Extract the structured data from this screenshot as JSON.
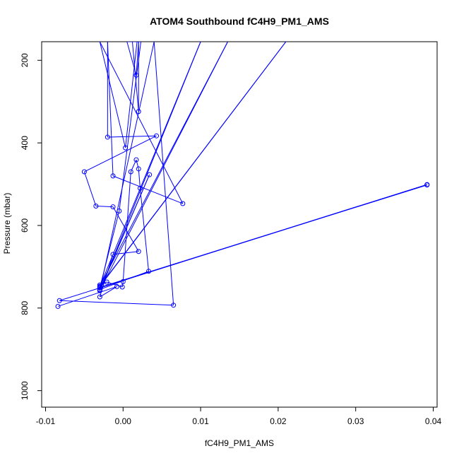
{
  "chart_data": {
    "type": "line",
    "title": "ATOM4 Southbound fC4H9_PM1_AMS",
    "xlabel": "fC4H9_PM1_AMS",
    "ylabel": "Pressure (mbar)",
    "xlim": [
      -0.0105,
      0.0405
    ],
    "ylim": [
      1040,
      155
    ],
    "y_reversed": true,
    "x_ticks": [
      -0.01,
      0.0,
      0.01,
      0.02,
      0.03,
      0.04
    ],
    "x_tick_labels": [
      "-0.01",
      "0.00",
      "0.01",
      "0.02",
      "0.03",
      "0.04"
    ],
    "y_ticks": [
      200,
      400,
      600,
      800,
      1000
    ],
    "y_tick_labels": [
      "200",
      "400",
      "600",
      "800",
      "1000"
    ],
    "grid": false,
    "legend": "none",
    "series_color": "#0000ff",
    "series": [
      {
        "style": "line+points",
        "points": [
          [
            -0.0084,
            796
          ],
          [
            -0.0008,
            748
          ],
          [
            -0.003,
            773
          ],
          [
            -0.0013,
            670
          ],
          [
            0.002,
            663
          ],
          [
            -0.0013,
            555
          ],
          [
            -0.0035,
            553
          ],
          [
            -0.005,
            470
          ],
          [
            0.0043,
            383
          ],
          [
            -0.002,
            386
          ],
          [
            -0.002,
            155
          ],
          [
            -0.0013,
            480
          ],
          [
            0.0077,
            547
          ],
          [
            -0.003,
            155
          ],
          [
            0.0003,
            412
          ],
          [
            0.0018,
            155
          ],
          [
            0.0005,
            155
          ],
          [
            0.0017,
            236
          ],
          [
            0.002,
            155
          ],
          [
            0.002,
            324
          ],
          [
            0.0012,
            155
          ],
          [
            0.001,
            155
          ],
          [
            0.0023,
            155
          ],
          [
            -0.0005,
            565
          ],
          [
            -0.003,
            751
          ],
          [
            -0.003,
            744
          ],
          [
            -0.0021,
            737
          ],
          [
            -0.0001,
            749
          ],
          [
            0.0,
            736
          ],
          [
            0.001,
            470
          ],
          [
            0.0017,
            441
          ],
          [
            0.002,
            463
          ],
          [
            0.0022,
            510
          ],
          [
            0.0033,
            711
          ],
          [
            -0.003,
            755
          ],
          [
            0.0034,
            477
          ],
          [
            -0.003,
            757
          ],
          [
            0.0135,
            155
          ],
          [
            -0.003,
            747
          ],
          [
            0.021,
            155
          ],
          [
            -0.003,
            748
          ],
          [
            0.01,
            155
          ],
          [
            -0.003,
            758
          ],
          [
            0.004,
            155
          ],
          [
            0.0065,
            793
          ],
          [
            -0.0082,
            782
          ],
          [
            0.0392,
            501
          ],
          [
            -0.003,
            750
          ],
          [
            0.0392,
            502
          ]
        ]
      }
    ]
  }
}
